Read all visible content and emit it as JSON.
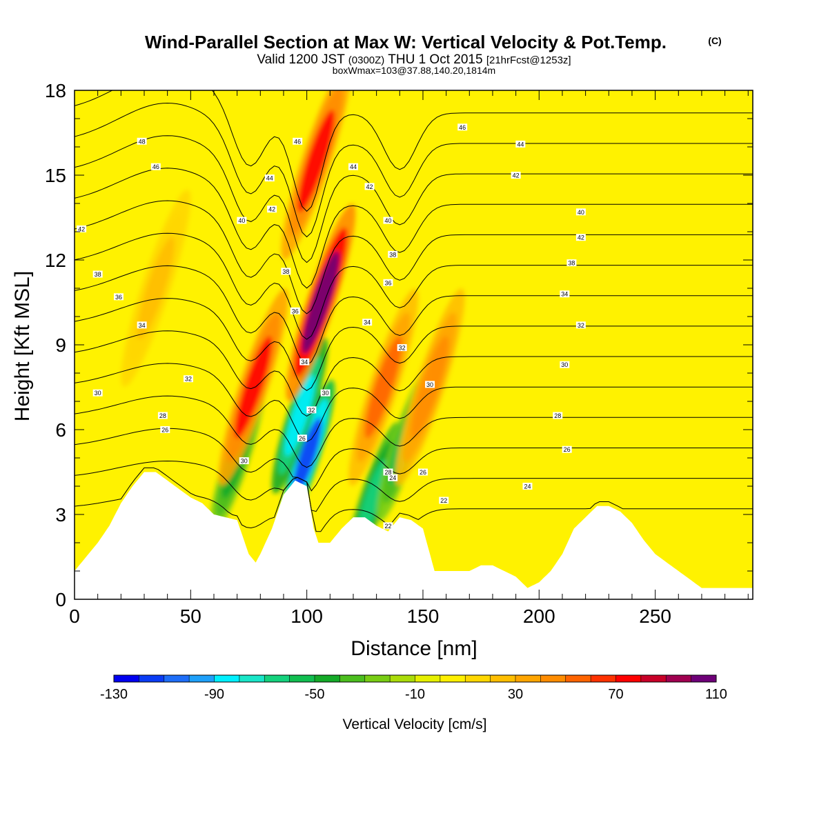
{
  "chart_data": {
    "type": "heatmap",
    "title": "Wind-Parallel Section at Max W: Vertical Velocity & Pot.Temp.",
    "title_mark": "(C)",
    "subtitle_parts": [
      "Valid 1200 JST ",
      "(0300Z)",
      " THU 1 Oct 2015 ",
      "[21hrFcst@1253z]"
    ],
    "subtitle2": "boxWmax=103@37.88,140.20,1814m",
    "xlabel": "Distance [nm]",
    "ylabel": "Height [Kft MSL]",
    "xlim": [
      0,
      292
    ],
    "ylim": [
      0,
      18
    ],
    "x_ticks": [
      0,
      50,
      100,
      150,
      200,
      250
    ],
    "y_ticks": [
      0,
      3,
      6,
      9,
      12,
      15,
      18
    ],
    "grid": false,
    "colorbar": {
      "label": "Vertical Velocity [cm/s]",
      "tick_labels": [
        "-130",
        "-90",
        "-50",
        "-10",
        "30",
        "70",
        "110"
      ],
      "levels": [
        -130,
        -120,
        -110,
        -100,
        -90,
        -80,
        -70,
        -60,
        -50,
        -40,
        -30,
        -20,
        -10,
        0,
        10,
        20,
        30,
        40,
        50,
        60,
        70,
        80,
        90,
        100,
        110
      ],
      "colors": [
        "#0000f0",
        "#0a3cf5",
        "#1e6ef8",
        "#1ea0fa",
        "#00f0ff",
        "#19e6c8",
        "#14d27d",
        "#11be50",
        "#14aa28",
        "#4bbe1e",
        "#78cd14",
        "#aadc0a",
        "#e6f000",
        "#fff000",
        "#ffd700",
        "#ffbe00",
        "#ffa500",
        "#ff8c00",
        "#ff6400",
        "#ff3200",
        "#ff0000",
        "#c80028",
        "#a00050",
        "#6e0078"
      ]
    },
    "terrain": {
      "x": [
        0,
        5,
        10,
        15,
        20,
        25,
        30,
        35,
        40,
        45,
        50,
        55,
        60,
        65,
        70,
        75,
        78,
        80,
        85,
        90,
        95,
        100,
        103,
        105,
        110,
        115,
        120,
        125,
        130,
        135,
        140,
        145,
        150,
        155,
        160,
        165,
        170,
        175,
        180,
        185,
        190,
        195,
        200,
        205,
        210,
        215,
        220,
        225,
        230,
        235,
        240,
        245,
        250,
        255,
        260,
        265,
        270,
        275,
        280,
        285,
        292
      ],
      "height_kft": [
        1.0,
        1.5,
        2.0,
        2.6,
        3.4,
        4.0,
        4.5,
        4.5,
        4.2,
        3.9,
        3.6,
        3.4,
        3.0,
        2.9,
        2.8,
        1.6,
        1.3,
        1.6,
        2.5,
        3.7,
        4.2,
        4.0,
        2.5,
        2.0,
        2.0,
        2.5,
        2.9,
        2.9,
        2.6,
        2.4,
        2.9,
        2.8,
        2.5,
        1.0,
        1.0,
        1.0,
        1.0,
        1.2,
        1.2,
        1.0,
        0.8,
        0.4,
        0.6,
        1.0,
        1.6,
        2.5,
        2.9,
        3.3,
        3.3,
        3.1,
        2.7,
        2.1,
        1.6,
        1.3,
        1.0,
        0.7,
        0.4,
        0.4,
        0.4,
        0.4,
        0.4
      ]
    },
    "updraft_cores_cm_s": [
      {
        "x": 77,
        "z": 7.5,
        "w": 70
      },
      {
        "x": 106,
        "z": 10.5,
        "w": 103
      },
      {
        "x": 104,
        "z": 15.5,
        "w": 70
      },
      {
        "x": 133,
        "z": 7.5,
        "w": 50
      },
      {
        "x": 153,
        "z": 7.5,
        "w": 45
      },
      {
        "x": 35,
        "z": 11.0,
        "w": 25
      }
    ],
    "downdraft_cores_cm_s": [
      {
        "x": 100,
        "z": 5.0,
        "w": -120
      },
      {
        "x": 97,
        "z": 6.5,
        "w": -90
      },
      {
        "x": 128,
        "z": 3.5,
        "w": -70
      },
      {
        "x": 142,
        "z": 5.5,
        "w": -55
      },
      {
        "x": 70,
        "z": 5.0,
        "w": -45
      }
    ],
    "theta_contours_C": [
      {
        "value": 22,
        "label_points": [
          [
            159,
            3.5
          ],
          [
            135,
            2.6
          ]
        ]
      },
      {
        "value": 24,
        "label_points": [
          [
            195,
            4.0
          ],
          [
            137,
            4.3
          ]
        ]
      },
      {
        "value": 26,
        "label_points": [
          [
            39,
            6.0
          ],
          [
            98,
            5.7
          ],
          [
            212,
            5.3
          ],
          [
            150,
            4.5
          ]
        ]
      },
      {
        "value": 28,
        "label_points": [
          [
            38,
            6.5
          ],
          [
            208,
            6.5
          ],
          [
            135,
            4.5
          ]
        ]
      },
      {
        "value": 30,
        "label_points": [
          [
            10,
            7.3
          ],
          [
            73,
            4.9
          ],
          [
            108,
            7.3
          ],
          [
            153,
            7.6
          ],
          [
            211,
            8.3
          ]
        ]
      },
      {
        "value": 32,
        "label_points": [
          [
            49,
            7.8
          ],
          [
            102,
            6.7
          ],
          [
            141,
            8.9
          ],
          [
            218,
            9.7
          ]
        ]
      },
      {
        "value": 34,
        "label_points": [
          [
            29,
            9.7
          ],
          [
            99,
            8.4
          ],
          [
            126,
            9.8
          ],
          [
            211,
            10.8
          ]
        ]
      },
      {
        "value": 36,
        "label_points": [
          [
            19,
            10.7
          ],
          [
            95,
            10.2
          ],
          [
            135,
            11.2
          ]
        ]
      },
      {
        "value": 38,
        "label_points": [
          [
            10,
            11.5
          ],
          [
            91,
            11.6
          ],
          [
            137,
            12.2
          ],
          [
            214,
            11.9
          ]
        ]
      },
      {
        "value": 40,
        "label_points": [
          [
            72,
            13.4
          ],
          [
            135,
            13.4
          ],
          [
            218,
            13.7
          ]
        ]
      },
      {
        "value": 42,
        "label_points": [
          [
            3,
            13.1
          ],
          [
            85,
            13.8
          ],
          [
            127,
            14.6
          ],
          [
            190,
            15.0
          ],
          [
            218,
            12.8
          ]
        ]
      },
      {
        "value": 44,
        "label_points": [
          [
            84,
            14.9
          ],
          [
            120,
            15.3
          ],
          [
            192,
            16.1
          ]
        ]
      },
      {
        "value": 46,
        "label_points": [
          [
            35,
            15.3
          ],
          [
            96,
            16.2
          ],
          [
            167,
            16.7
          ]
        ]
      },
      {
        "value": 48,
        "label_points": [
          [
            29,
            16.2
          ]
        ]
      }
    ]
  }
}
